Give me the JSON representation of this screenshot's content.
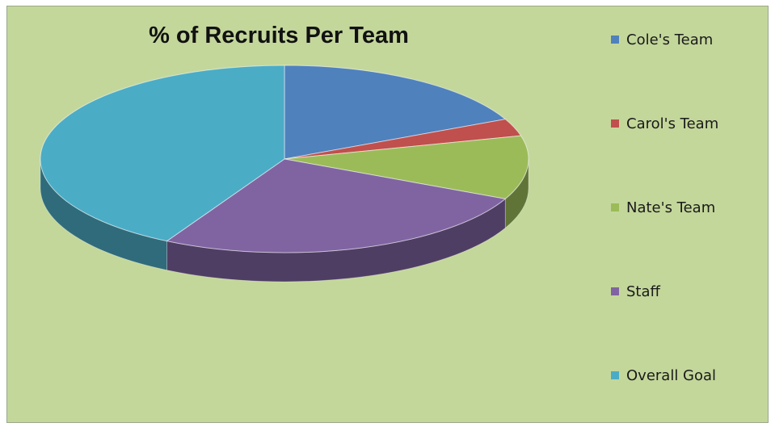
{
  "chart_data": {
    "type": "pie",
    "style": "3d",
    "title": "% of Recruits Per Team",
    "categories": [
      "Cole's Team",
      "Carol's Team",
      "Nate's Team",
      "Staff",
      "Overall Goal"
    ],
    "values": [
      18,
      3,
      11,
      26,
      42
    ],
    "colors": [
      "#4f81bd",
      "#c0504d",
      "#9bbb59",
      "#8064a2",
      "#4bacc6"
    ],
    "background": "#c4d79b",
    "legend": "right"
  }
}
